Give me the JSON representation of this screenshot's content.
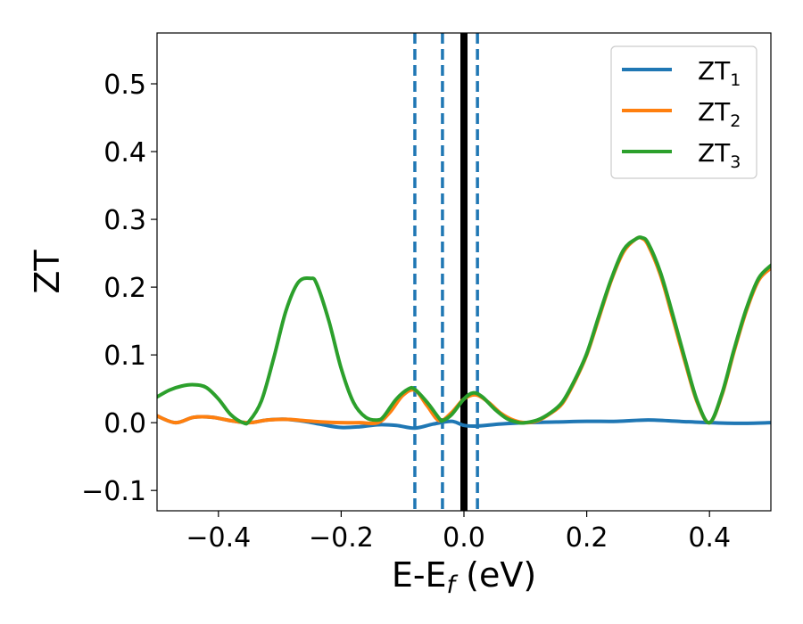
{
  "chart_data": {
    "type": "line",
    "xlabel": "E-E",
    "xlabel_subscript": "f",
    "xlabel_unit": " (eV)",
    "ylabel": "ZT",
    "xlim": [
      -0.5,
      0.5
    ],
    "ylim": [
      -0.13,
      0.575
    ],
    "xticks": [
      -0.4,
      -0.2,
      0.0,
      0.2,
      0.4
    ],
    "xtick_labels": [
      "−0.4",
      "−0.2",
      "0.0",
      "0.2",
      "0.4"
    ],
    "yticks": [
      -0.1,
      0.0,
      0.1,
      0.2,
      0.3,
      0.4,
      0.5
    ],
    "ytick_labels": [
      "−0.1",
      "0.0",
      "0.1",
      "0.2",
      "0.3",
      "0.4",
      "0.5"
    ],
    "legend_position": "top-right",
    "colors": {
      "series1": "#1f77b4",
      "series2": "#ff7f0e",
      "series3": "#2ca02c",
      "fermi_line": "#000000",
      "dashed_lines": "#1f77b4"
    },
    "vertical_lines": [
      {
        "x": 0.0,
        "style": "solid",
        "color": "#000000"
      },
      {
        "x": -0.08,
        "style": "dashed",
        "color": "#1f77b4"
      },
      {
        "x": -0.035,
        "style": "dashed",
        "color": "#1f77b4"
      },
      {
        "x": 0.022,
        "style": "dashed",
        "color": "#1f77b4"
      }
    ],
    "series": [
      {
        "name": "ZT",
        "name_subscript": "1",
        "color": "#1f77b4",
        "x": [
          -0.5,
          -0.47,
          -0.44,
          -0.41,
          -0.38,
          -0.35,
          -0.32,
          -0.29,
          -0.26,
          -0.23,
          -0.2,
          -0.17,
          -0.14,
          -0.11,
          -0.08,
          -0.05,
          -0.02,
          0.0,
          0.02,
          0.06,
          0.1,
          0.15,
          0.2,
          0.25,
          0.3,
          0.35,
          0.4,
          0.45,
          0.5
        ],
        "y": [
          0.01,
          0.0,
          0.008,
          0.008,
          0.003,
          0.0,
          0.004,
          0.005,
          0.002,
          -0.003,
          -0.007,
          -0.006,
          -0.003,
          -0.004,
          -0.008,
          -0.002,
          0.002,
          -0.004,
          -0.005,
          -0.002,
          0.0,
          0.001,
          0.002,
          0.002,
          0.004,
          0.002,
          0.0,
          -0.001,
          0.0
        ]
      },
      {
        "name": "ZT",
        "name_subscript": "2",
        "color": "#ff7f0e",
        "x": [
          -0.5,
          -0.47,
          -0.44,
          -0.41,
          -0.38,
          -0.35,
          -0.32,
          -0.29,
          -0.26,
          -0.23,
          -0.2,
          -0.17,
          -0.14,
          -0.12,
          -0.1,
          -0.08,
          -0.06,
          -0.04,
          -0.02,
          0.0,
          0.02,
          0.04,
          0.06,
          0.08,
          0.1,
          0.12,
          0.14,
          0.16,
          0.18,
          0.2,
          0.22,
          0.24,
          0.26,
          0.28,
          0.29,
          0.3,
          0.32,
          0.34,
          0.36,
          0.38,
          0.4,
          0.42,
          0.44,
          0.46,
          0.48,
          0.5
        ],
        "y": [
          0.01,
          0.0,
          0.008,
          0.008,
          0.003,
          0.0,
          0.004,
          0.005,
          0.003,
          0.001,
          0.0,
          0.0,
          0.0,
          0.016,
          0.04,
          0.048,
          0.025,
          0.003,
          0.015,
          0.035,
          0.041,
          0.03,
          0.014,
          0.004,
          0.0,
          0.003,
          0.013,
          0.028,
          0.06,
          0.1,
          0.155,
          0.21,
          0.252,
          0.271,
          0.272,
          0.262,
          0.218,
          0.155,
          0.09,
          0.03,
          0.0,
          0.04,
          0.105,
          0.165,
          0.21,
          0.228
        ]
      },
      {
        "name": "ZT",
        "name_subscript": "3",
        "color": "#2ca02c",
        "x": [
          -0.5,
          -0.48,
          -0.46,
          -0.44,
          -0.42,
          -0.4,
          -0.38,
          -0.36,
          -0.35,
          -0.33,
          -0.31,
          -0.29,
          -0.27,
          -0.25,
          -0.24,
          -0.22,
          -0.2,
          -0.18,
          -0.16,
          -0.14,
          -0.13,
          -0.11,
          -0.09,
          -0.08,
          -0.06,
          -0.04,
          -0.035,
          -0.02,
          0.0,
          0.015,
          0.03,
          0.05,
          0.07,
          0.09,
          0.1,
          0.12,
          0.14,
          0.16,
          0.18,
          0.2,
          0.22,
          0.24,
          0.26,
          0.28,
          0.29,
          0.3,
          0.32,
          0.34,
          0.36,
          0.38,
          0.4,
          0.42,
          0.44,
          0.46,
          0.48,
          0.5
        ],
        "y": [
          0.038,
          0.048,
          0.054,
          0.056,
          0.052,
          0.035,
          0.012,
          0.0,
          0.002,
          0.032,
          0.095,
          0.165,
          0.207,
          0.213,
          0.205,
          0.15,
          0.08,
          0.03,
          0.008,
          0.004,
          0.01,
          0.035,
          0.05,
          0.049,
          0.03,
          0.006,
          0.003,
          0.012,
          0.035,
          0.044,
          0.038,
          0.02,
          0.006,
          0.0,
          0.0,
          0.004,
          0.014,
          0.03,
          0.062,
          0.102,
          0.158,
          0.212,
          0.255,
          0.271,
          0.273,
          0.265,
          0.222,
          0.16,
          0.094,
          0.032,
          0.0,
          0.042,
          0.108,
          0.168,
          0.213,
          0.232
        ]
      }
    ]
  }
}
